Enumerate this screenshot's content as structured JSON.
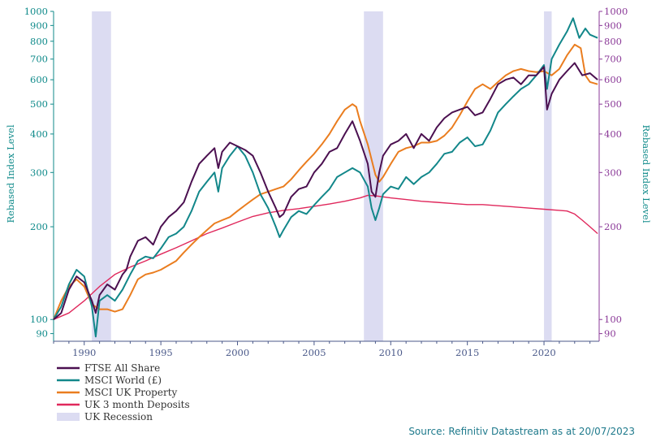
{
  "chart_data": {
    "type": "line",
    "yscale": "log",
    "ylim": [
      85,
      1000
    ],
    "xlim": [
      1988,
      2023.6
    ],
    "y_ticks": [
      90,
      100,
      200,
      300,
      400,
      500,
      600,
      700,
      800,
      900,
      1000
    ],
    "x_ticks": [
      1990,
      1995,
      2000,
      2005,
      2010,
      2015,
      2020
    ],
    "ylabel_left": "Rebased Index Level",
    "ylabel_right": "Rebased Index Level",
    "legend_position": "bottom-left",
    "source": "Source: Refinitiv Datastream as at 20/07/2023",
    "recessions": [
      {
        "name": "UK Recession",
        "start": 1990.5,
        "end": 1991.75
      },
      {
        "name": "UK Recession",
        "start": 2008.25,
        "end": 2009.5
      },
      {
        "name": "UK Recession",
        "start": 2020.0,
        "end": 2020.5
      }
    ],
    "recession_color": "#dcdcf2",
    "legend": [
      {
        "label": "FTSE All Share",
        "color": "#4b1050",
        "kind": "line"
      },
      {
        "label": "MSCI World (£)",
        "color": "#12878a",
        "kind": "line"
      },
      {
        "label": "MSCI UK Property",
        "color": "#ea7d1f",
        "kind": "line"
      },
      {
        "label": "UK 3 month Deposits",
        "color": "#e0285c",
        "kind": "line"
      },
      {
        "label": "UK Recession",
        "color": "#dcdcf2",
        "kind": "box"
      }
    ],
    "series": [
      {
        "name": "FTSE All Share",
        "color": "#4b1050",
        "x": [
          1988.0,
          1988.5,
          1989.0,
          1989.5,
          1990.0,
          1990.5,
          1990.75,
          1991.0,
          1991.5,
          1992.0,
          1992.5,
          1992.75,
          1993.0,
          1993.5,
          1994.0,
          1994.5,
          1995.0,
          1995.5,
          1996.0,
          1996.5,
          1997.0,
          1997.5,
          1998.0,
          1998.5,
          1998.75,
          1999.0,
          1999.5,
          2000.0,
          2000.5,
          2001.0,
          2001.5,
          2002.0,
          2002.5,
          2002.75,
          2003.0,
          2003.5,
          2004.0,
          2004.5,
          2005.0,
          2005.5,
          2006.0,
          2006.5,
          2007.0,
          2007.5,
          2008.0,
          2008.5,
          2008.75,
          2009.0,
          2009.25,
          2009.5,
          2010.0,
          2010.5,
          2011.0,
          2011.5,
          2012.0,
          2012.5,
          2013.0,
          2013.5,
          2014.0,
          2014.5,
          2015.0,
          2015.5,
          2016.0,
          2016.5,
          2017.0,
          2017.5,
          2018.0,
          2018.5,
          2019.0,
          2019.5,
          2020.0,
          2020.2,
          2020.5,
          2021.0,
          2021.5,
          2022.0,
          2022.5,
          2023.0,
          2023.5
        ],
        "y": [
          100,
          105,
          125,
          138,
          132,
          115,
          105,
          120,
          130,
          125,
          140,
          145,
          160,
          180,
          185,
          175,
          200,
          215,
          225,
          240,
          280,
          320,
          340,
          360,
          310,
          350,
          375,
          365,
          355,
          340,
          300,
          260,
          230,
          215,
          220,
          250,
          265,
          270,
          300,
          320,
          350,
          360,
          400,
          440,
          380,
          320,
          260,
          250,
          300,
          340,
          370,
          380,
          400,
          360,
          400,
          380,
          420,
          450,
          470,
          480,
          490,
          460,
          470,
          520,
          580,
          600,
          610,
          580,
          620,
          620,
          660,
          480,
          540,
          600,
          640,
          680,
          620,
          630,
          600
        ]
      },
      {
        "name": "MSCI World (£)",
        "color": "#12878a",
        "x": [
          1988.0,
          1988.5,
          1989.0,
          1989.5,
          1990.0,
          1990.5,
          1990.75,
          1991.0,
          1991.5,
          1992.0,
          1992.5,
          1993.0,
          1993.5,
          1994.0,
          1994.5,
          1995.0,
          1995.5,
          1996.0,
          1996.5,
          1997.0,
          1997.5,
          1998.0,
          1998.5,
          1998.75,
          1999.0,
          1999.5,
          2000.0,
          2000.5,
          2001.0,
          2001.5,
          2002.0,
          2002.5,
          2002.75,
          2003.0,
          2003.5,
          2004.0,
          2004.5,
          2005.0,
          2005.5,
          2006.0,
          2006.5,
          2007.0,
          2007.5,
          2008.0,
          2008.5,
          2008.75,
          2009.0,
          2009.25,
          2009.5,
          2010.0,
          2010.5,
          2011.0,
          2011.5,
          2012.0,
          2012.5,
          2013.0,
          2013.5,
          2014.0,
          2014.5,
          2015.0,
          2015.5,
          2016.0,
          2016.5,
          2017.0,
          2017.5,
          2018.0,
          2018.5,
          2019.0,
          2019.5,
          2020.0,
          2020.2,
          2020.5,
          2021.0,
          2021.5,
          2021.9,
          2022.3,
          2022.7,
          2023.0,
          2023.5
        ],
        "y": [
          100,
          110,
          130,
          145,
          138,
          110,
          88,
          115,
          120,
          115,
          125,
          140,
          155,
          160,
          158,
          170,
          185,
          190,
          200,
          225,
          260,
          280,
          300,
          260,
          310,
          340,
          365,
          340,
          300,
          255,
          230,
          200,
          185,
          195,
          215,
          225,
          220,
          235,
          250,
          265,
          290,
          300,
          310,
          300,
          270,
          230,
          210,
          230,
          255,
          270,
          265,
          290,
          275,
          290,
          300,
          320,
          345,
          350,
          375,
          390,
          365,
          370,
          410,
          470,
          500,
          530,
          560,
          580,
          620,
          670,
          560,
          700,
          780,
          860,
          950,
          820,
          880,
          840,
          820
        ]
      },
      {
        "name": "MSCI UK Property",
        "color": "#ea7d1f",
        "x": [
          1988.0,
          1988.5,
          1989.0,
          1989.5,
          1990.0,
          1990.5,
          1991.0,
          1991.5,
          1992.0,
          1992.5,
          1993.0,
          1993.5,
          1994.0,
          1994.5,
          1995.0,
          1995.5,
          1996.0,
          1996.5,
          1997.0,
          1997.5,
          1998.0,
          1998.5,
          1999.0,
          1999.5,
          2000.0,
          2000.5,
          2001.0,
          2001.5,
          2002.0,
          2002.5,
          2003.0,
          2003.5,
          2004.0,
          2004.5,
          2005.0,
          2005.5,
          2006.0,
          2006.5,
          2007.0,
          2007.5,
          2007.75,
          2008.0,
          2008.5,
          2009.0,
          2009.25,
          2009.5,
          2010.0,
          2010.5,
          2011.0,
          2011.5,
          2012.0,
          2012.5,
          2013.0,
          2013.5,
          2014.0,
          2014.5,
          2015.0,
          2015.5,
          2016.0,
          2016.5,
          2017.0,
          2017.5,
          2018.0,
          2018.5,
          2019.0,
          2019.5,
          2020.0,
          2020.5,
          2021.0,
          2021.5,
          2022.0,
          2022.4,
          2022.7,
          2023.0,
          2023.5
        ],
        "y": [
          100,
          115,
          128,
          135,
          128,
          112,
          108,
          108,
          106,
          108,
          120,
          135,
          140,
          142,
          145,
          150,
          155,
          165,
          175,
          185,
          195,
          205,
          210,
          215,
          225,
          235,
          245,
          255,
          260,
          265,
          270,
          285,
          305,
          325,
          345,
          370,
          400,
          440,
          480,
          500,
          490,
          440,
          370,
          295,
          280,
          290,
          320,
          350,
          360,
          365,
          375,
          375,
          380,
          395,
          420,
          460,
          510,
          560,
          580,
          560,
          590,
          620,
          640,
          650,
          640,
          635,
          640,
          620,
          650,
          720,
          780,
          760,
          620,
          590,
          580
        ]
      },
      {
        "name": "UK 3 month Deposits",
        "color": "#e0285c",
        "x": [
          1988.0,
          1989.0,
          1990.0,
          1991.0,
          1992.0,
          1993.0,
          1994.0,
          1995.0,
          1996.0,
          1997.0,
          1998.0,
          1999.0,
          2000.0,
          2001.0,
          2002.0,
          2003.0,
          2004.0,
          2005.0,
          2006.0,
          2007.0,
          2008.0,
          2008.5,
          2009.0,
          2010.0,
          2011.0,
          2012.0,
          2013.0,
          2014.0,
          2015.0,
          2016.0,
          2017.0,
          2018.0,
          2019.0,
          2020.0,
          2021.0,
          2021.5,
          2022.0,
          2022.5,
          2023.0,
          2023.5
        ],
        "y": [
          100,
          105,
          115,
          128,
          140,
          148,
          155,
          163,
          171,
          180,
          190,
          198,
          207,
          216,
          222,
          226,
          229,
          233,
          237,
          242,
          248,
          253,
          252,
          248,
          245,
          242,
          240,
          238,
          236,
          236,
          234,
          232,
          230,
          228,
          226,
          225,
          220,
          210,
          200,
          190
        ]
      }
    ]
  }
}
